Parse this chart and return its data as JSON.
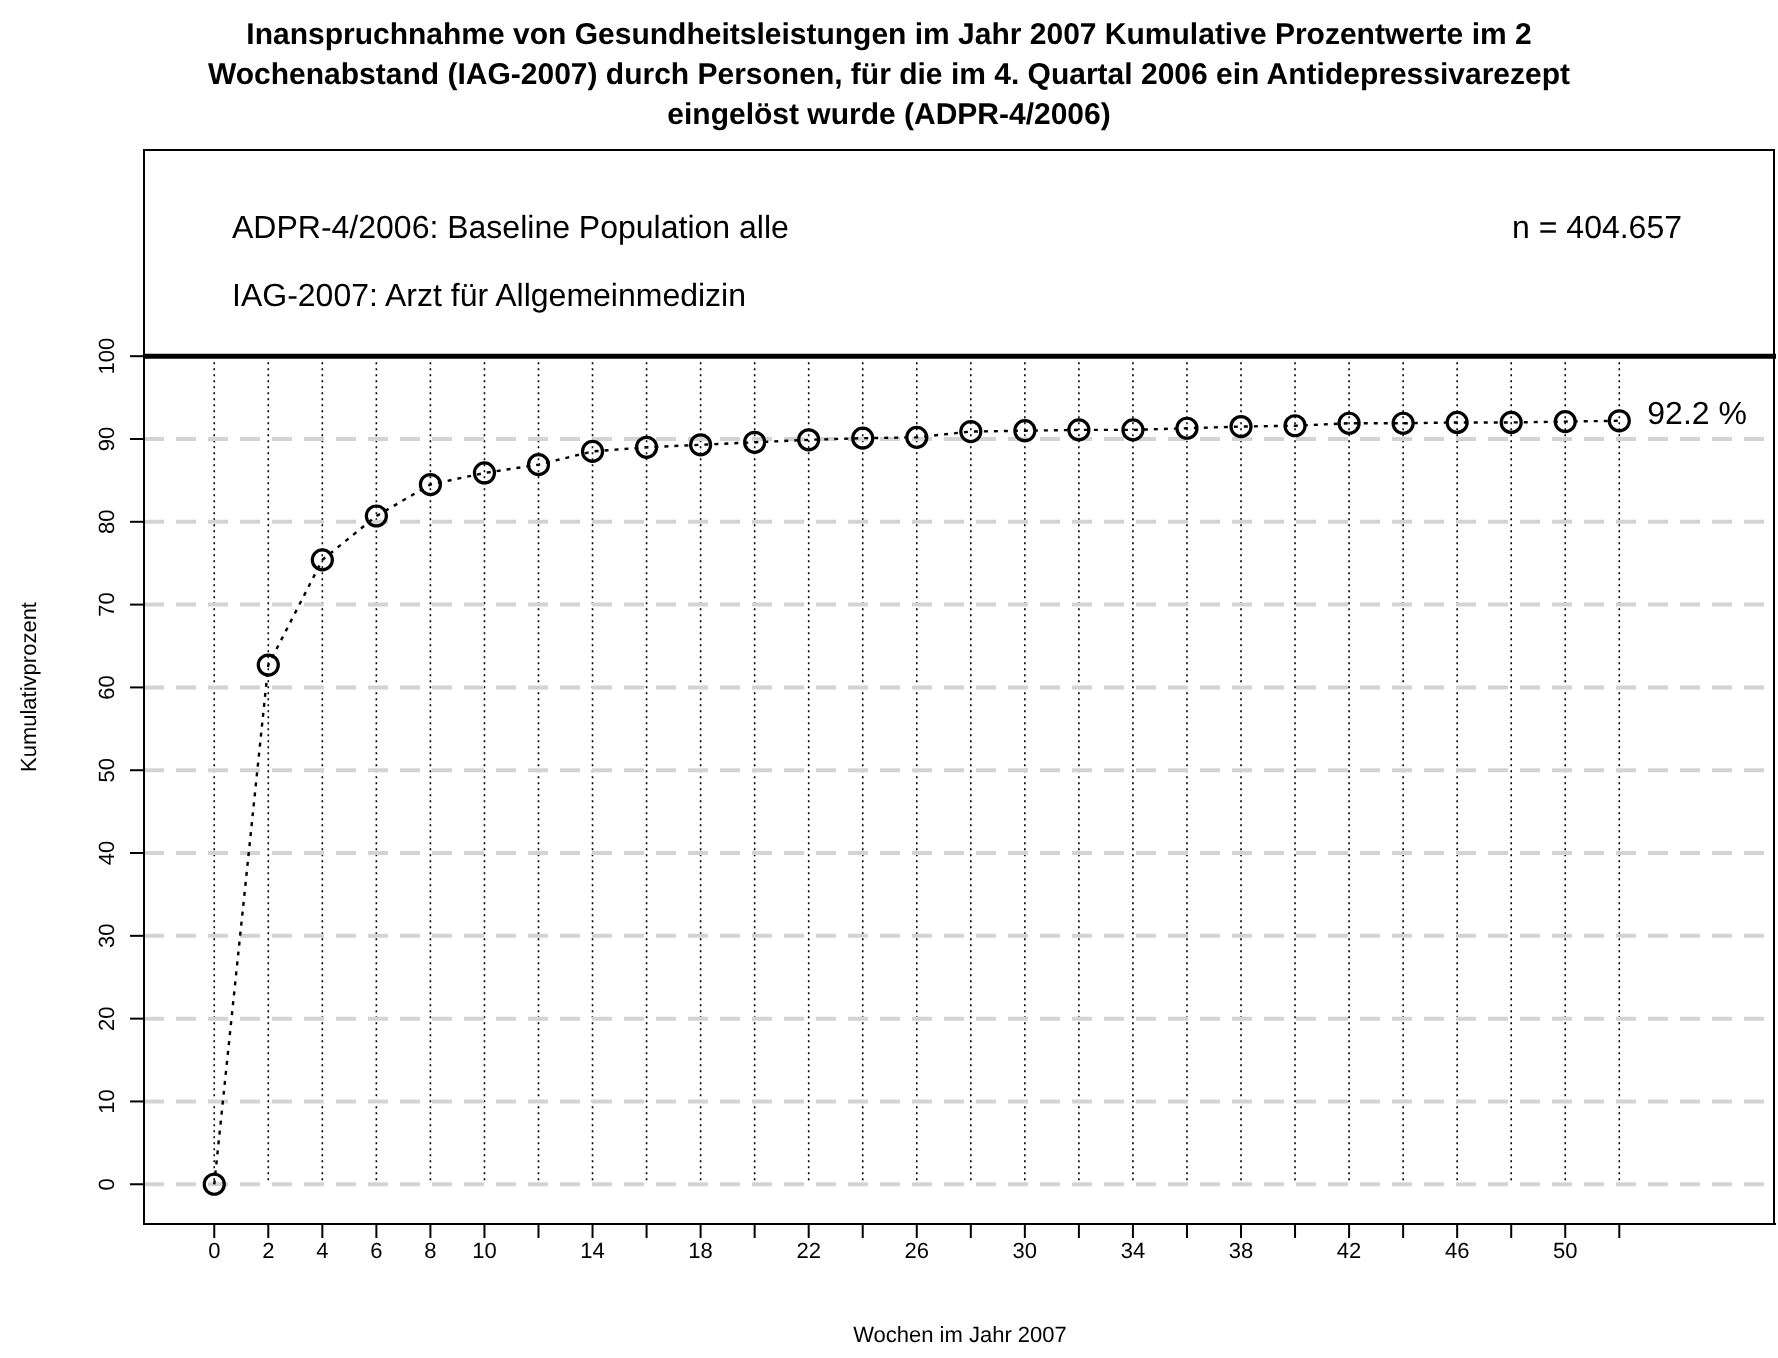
{
  "chart_data": {
    "type": "line",
    "title": "Inanspruchnahme von Gesundheitsleistungen im Jahr 2007 Kumulative Prozentwerte im 2 Wochenabstand (IAG-2007) durch Personen, für die im 4. Quartal 2006 ein Antidepressivarezept eingelöst wurde (ADPR-4/2006)",
    "xlabel": "Wochen im Jahr 2007",
    "ylabel": "Kumulativprozent",
    "x": [
      0,
      2,
      4,
      6,
      8,
      10,
      12,
      14,
      16,
      18,
      20,
      22,
      24,
      26,
      28,
      30,
      32,
      34,
      36,
      38,
      40,
      42,
      44,
      46,
      48,
      50,
      52
    ],
    "series": [
      {
        "color": "#000000",
        "values": [
          0,
          62.7,
          75.4,
          80.7,
          84.5,
          85.9,
          86.9,
          88.5,
          89.0,
          89.3,
          89.6,
          89.9,
          90.1,
          90.2,
          90.9,
          91.0,
          91.1,
          91.1,
          91.3,
          91.5,
          91.6,
          91.9,
          91.9,
          92.0,
          92.0,
          92.1,
          92.2
        ]
      }
    ],
    "xlim": [
      -2.6,
      57.8
    ],
    "ylim": [
      -4.8,
      124.9
    ],
    "xticks": [
      0,
      2,
      4,
      6,
      8,
      10,
      {
        "value": 12,
        "label": null
      },
      14,
      {
        "value": 16,
        "label": null
      },
      18,
      {
        "value": 20,
        "label": null
      },
      22,
      {
        "value": 24,
        "label": null
      },
      26,
      {
        "value": 28,
        "label": null
      },
      30,
      {
        "value": 32,
        "label": null
      },
      34,
      {
        "value": 36,
        "label": null
      },
      38,
      {
        "value": 40,
        "label": null
      },
      42,
      {
        "value": 44,
        "label": null
      },
      46,
      {
        "value": 48,
        "label": null
      },
      50,
      {
        "value": 52,
        "label": null
      }
    ],
    "yticks": [
      0,
      10,
      20,
      30,
      40,
      50,
      60,
      70,
      80,
      90,
      100
    ],
    "ref_lines": [
      {
        "axis": "y",
        "value": 100,
        "label": null,
        "color": "#000000"
      }
    ],
    "annotations": [
      "ADPR-4/2006: Baseline Population alle",
      "IAG-2007: Arzt für Allgemeinmedizin",
      "n = 404.657",
      {
        "text": "92.2 %",
        "x": 52,
        "y": 92.2
      }
    ],
    "grid": true,
    "marker": "circle",
    "line_style": "dotted"
  }
}
